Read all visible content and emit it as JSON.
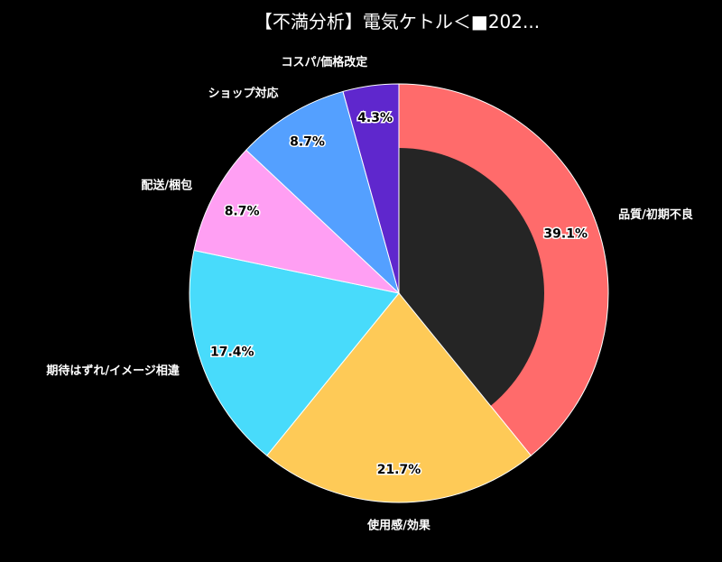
{
  "chart_data": {
    "type": "pie",
    "title": "【不満分析】電気ケトル＜■202...",
    "categories": [
      "品質/初期不良",
      "使用感/効果",
      "期待はずれ/イメージ相違",
      "配送/梱包",
      "ショップ対応",
      "コスパ/価格改定"
    ],
    "values": [
      39.1,
      21.7,
      17.4,
      8.7,
      8.7,
      4.3
    ],
    "value_labels": [
      "39.1%",
      "21.7%",
      "17.4%",
      "8.7%",
      "8.7%",
      "4.3%"
    ],
    "colors": [
      "#ff6b6b",
      "#feca57",
      "#48dbfb",
      "#ff9ff3",
      "#54a0ff",
      "#5f27cd"
    ],
    "donut": true,
    "start": "top",
    "direction": "clockwise",
    "center_color": "#252525",
    "background": "#000000"
  }
}
